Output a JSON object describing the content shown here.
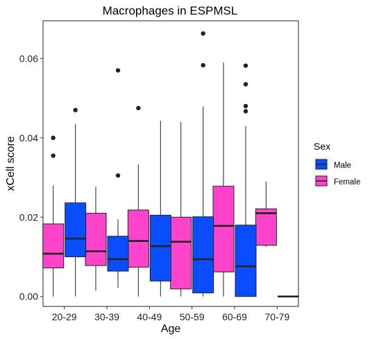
{
  "chart_data": {
    "type": "boxplot",
    "title": "Macrophages in ESPMSL",
    "xlabel": "Age",
    "ylabel": "xCell score",
    "categories": [
      "20-29",
      "30-39",
      "40-49",
      "50-59",
      "60-69",
      "70-79"
    ],
    "ylim": [
      -0.0025,
      0.0695
    ],
    "yticks": [
      0.0,
      0.02,
      0.04,
      0.06
    ],
    "ytick_labels": [
      "0.00",
      "0.02",
      "0.04",
      "0.06"
    ],
    "grid": false,
    "legend": {
      "title": "Sex",
      "position": "right",
      "entries": [
        {
          "label": "Male",
          "color": "#0a4dff"
        },
        {
          "label": "Female",
          "color": "#ff44cc"
        }
      ]
    },
    "series": [
      {
        "name": "Female",
        "color": "#ff44cc",
        "boxes": [
          {
            "category": "20-29",
            "min": 0.0,
            "q1": 0.0072,
            "median": 0.0108,
            "q3": 0.0183,
            "max": 0.028,
            "outliers": [
              0.0355,
              0.04
            ]
          },
          {
            "category": "30-39",
            "min": 0.0015,
            "q1": 0.0078,
            "median": 0.0114,
            "q3": 0.021,
            "max": 0.0277,
            "outliers": []
          },
          {
            "category": "40-49",
            "min": 0.0,
            "q1": 0.0074,
            "median": 0.014,
            "q3": 0.0218,
            "max": 0.0333,
            "outliers": [
              0.0475
            ]
          },
          {
            "category": "50-59",
            "min": 0.0,
            "q1": 0.0019,
            "median": 0.0138,
            "q3": 0.02,
            "max": 0.044,
            "outliers": []
          },
          {
            "category": "60-69",
            "min": 0.0,
            "q1": 0.0062,
            "median": 0.0178,
            "q3": 0.0278,
            "max": 0.059,
            "outliers": []
          },
          {
            "category": "70-79",
            "min": 0.0125,
            "q1": 0.0129,
            "median": 0.021,
            "q3": 0.0221,
            "max": 0.029,
            "outliers": []
          }
        ]
      },
      {
        "name": "Male",
        "color": "#0a4dff",
        "boxes": [
          {
            "category": "20-29",
            "min": 0.0,
            "q1": 0.01,
            "median": 0.0146,
            "q3": 0.0236,
            "max": 0.0435,
            "outliers": [
              0.047
            ]
          },
          {
            "category": "30-39",
            "min": 0.0021,
            "q1": 0.0064,
            "median": 0.0094,
            "q3": 0.0152,
            "max": 0.0195,
            "outliers": [
              0.0305,
              0.057
            ]
          },
          {
            "category": "40-49",
            "min": 0.0,
            "q1": 0.0039,
            "median": 0.0127,
            "q3": 0.0205,
            "max": 0.0443,
            "outliers": []
          },
          {
            "category": "50-59",
            "min": 0.0,
            "q1": 0.0009,
            "median": 0.0094,
            "q3": 0.0201,
            "max": 0.0479,
            "outliers": [
              0.0583,
              0.0663
            ]
          },
          {
            "category": "60-69",
            "min": 0.0,
            "q1": 0.0,
            "median": 0.0076,
            "q3": 0.018,
            "max": 0.043,
            "outliers": [
              0.0467,
              0.048,
              0.0535,
              0.0582
            ]
          },
          {
            "category": "70-79",
            "min": 0.0,
            "q1": 0.0,
            "median": 0.0,
            "q3": 0.0,
            "max": 0.0,
            "outliers": []
          }
        ]
      }
    ]
  }
}
